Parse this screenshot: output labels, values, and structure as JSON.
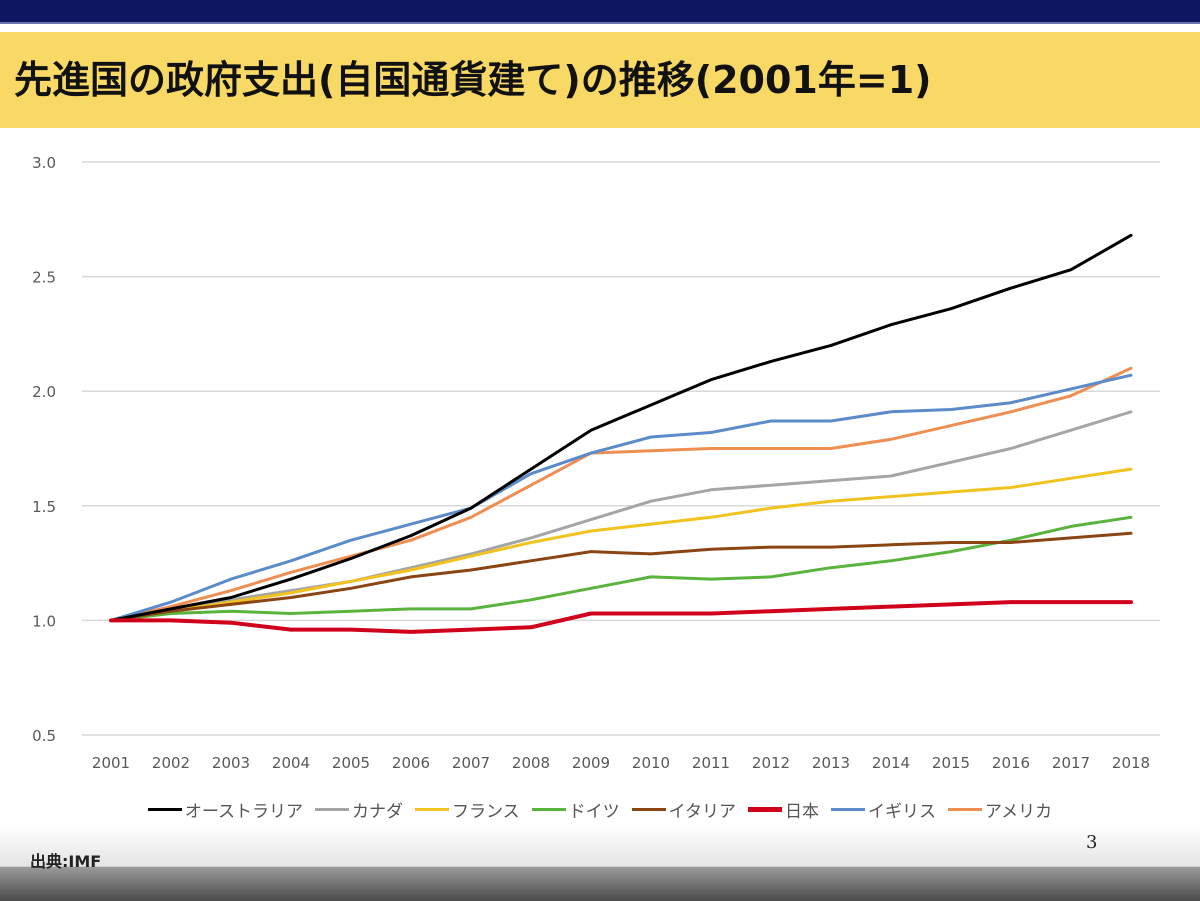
{
  "slide": {
    "title": "先進国の政府支出(自国通貨建て)の推移(2001年=1)",
    "source": "出典:IMF",
    "page_number": "3"
  },
  "colors": {
    "top_bar": "#0d1660",
    "title_band": "#f8d966"
  },
  "chart_data": {
    "type": "line",
    "title": "先進国の政府支出(自国通貨建て)の推移(2001年=1)",
    "xlabel": "",
    "ylabel": "",
    "x": [
      "2001",
      "2002",
      "2003",
      "2004",
      "2005",
      "2006",
      "2007",
      "2008",
      "2009",
      "2010",
      "2011",
      "2012",
      "2013",
      "2014",
      "2015",
      "2016",
      "2017",
      "2018"
    ],
    "ylim": [
      0.5,
      3.0
    ],
    "yticks": [
      "0.5",
      "1.0",
      "1.5",
      "2.0",
      "2.5",
      "3.0"
    ],
    "ytick_values": [
      0.5,
      1.0,
      1.5,
      2.0,
      2.5,
      3.0
    ],
    "grid": true,
    "legend_position": "bottom",
    "series": [
      {
        "name": "オーストラリア",
        "color": "#000000",
        "values": [
          1.0,
          1.05,
          1.1,
          1.18,
          1.27,
          1.37,
          1.49,
          1.66,
          1.83,
          1.94,
          2.05,
          2.13,
          2.2,
          2.29,
          2.36,
          2.45,
          2.53,
          2.68
        ]
      },
      {
        "name": "カナダ",
        "color": "#a5a5a5",
        "values": [
          1.0,
          1.05,
          1.09,
          1.13,
          1.17,
          1.23,
          1.29,
          1.36,
          1.44,
          1.52,
          1.57,
          1.59,
          1.61,
          1.63,
          1.69,
          1.75,
          1.83,
          1.91
        ]
      },
      {
        "name": "フランス",
        "color": "#f2c21e",
        "values": [
          1.0,
          1.04,
          1.08,
          1.12,
          1.17,
          1.22,
          1.28,
          1.34,
          1.39,
          1.42,
          1.45,
          1.49,
          1.52,
          1.54,
          1.56,
          1.58,
          1.62,
          1.66
        ]
      },
      {
        "name": "ドイツ",
        "color": "#5ab33c",
        "values": [
          1.0,
          1.03,
          1.04,
          1.03,
          1.04,
          1.05,
          1.05,
          1.09,
          1.14,
          1.19,
          1.18,
          1.19,
          1.23,
          1.26,
          1.3,
          1.35,
          1.41,
          1.45
        ]
      },
      {
        "name": "イタリア",
        "color": "#8b4513",
        "values": [
          1.0,
          1.04,
          1.07,
          1.1,
          1.14,
          1.19,
          1.22,
          1.26,
          1.3,
          1.29,
          1.31,
          1.32,
          1.32,
          1.33,
          1.34,
          1.34,
          1.36,
          1.38
        ]
      },
      {
        "name": "日本",
        "color": "#d0021b",
        "values": [
          1.0,
          1.0,
          0.99,
          0.96,
          0.96,
          0.95,
          0.96,
          0.97,
          1.03,
          1.03,
          1.03,
          1.04,
          1.05,
          1.06,
          1.07,
          1.08,
          1.08,
          1.08
        ]
      },
      {
        "name": "イギリス",
        "color": "#5b8bc9",
        "values": [
          1.0,
          1.08,
          1.18,
          1.26,
          1.35,
          1.42,
          1.49,
          1.64,
          1.73,
          1.8,
          1.82,
          1.87,
          1.87,
          1.91,
          1.92,
          1.95,
          2.01,
          2.07
        ]
      },
      {
        "name": "アメリカ",
        "color": "#ef8e52",
        "values": [
          1.0,
          1.06,
          1.13,
          1.21,
          1.28,
          1.35,
          1.45,
          1.59,
          1.73,
          1.74,
          1.75,
          1.75,
          1.75,
          1.79,
          1.85,
          1.91,
          1.98,
          2.1
        ]
      }
    ]
  }
}
